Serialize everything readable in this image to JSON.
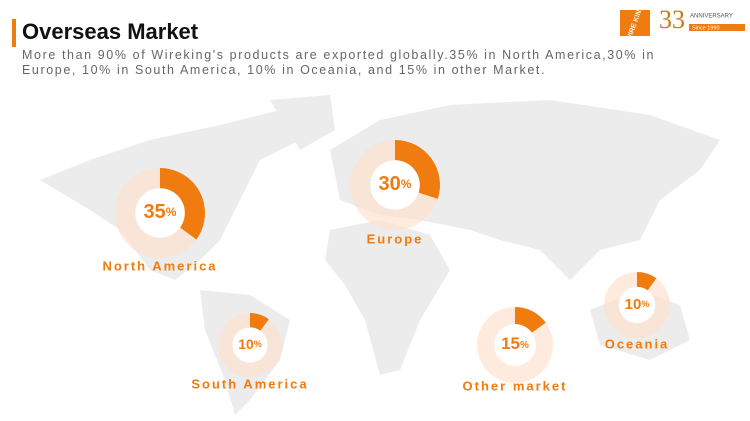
{
  "title": "Overseas Market",
  "description": "More than 90% of Wireking's products are exported globally.35% in North America,30% in Europe, 10% in South America, 10% in Oceania, and 15% in other Market.",
  "logo": {
    "brand": "WIRE KING",
    "number": "33",
    "text": "ANNIVERSARY",
    "since": "Since 1990"
  },
  "chart_data": [
    {
      "type": "donut",
      "categories": [
        "North America"
      ],
      "values": [
        35
      ],
      "unit": "%",
      "color": "#f07b0f"
    },
    {
      "type": "donut",
      "categories": [
        "Europe"
      ],
      "values": [
        30
      ],
      "unit": "%",
      "color": "#f07b0f"
    },
    {
      "type": "donut",
      "categories": [
        "South America"
      ],
      "values": [
        10
      ],
      "unit": "%",
      "color": "#f07b0f"
    },
    {
      "type": "donut",
      "categories": [
        "Other market"
      ],
      "values": [
        15
      ],
      "unit": "%",
      "color": "#f07b0f"
    },
    {
      "type": "donut",
      "categories": [
        "Oceania"
      ],
      "values": [
        10
      ],
      "unit": "%",
      "color": "#f07b0f"
    }
  ]
}
